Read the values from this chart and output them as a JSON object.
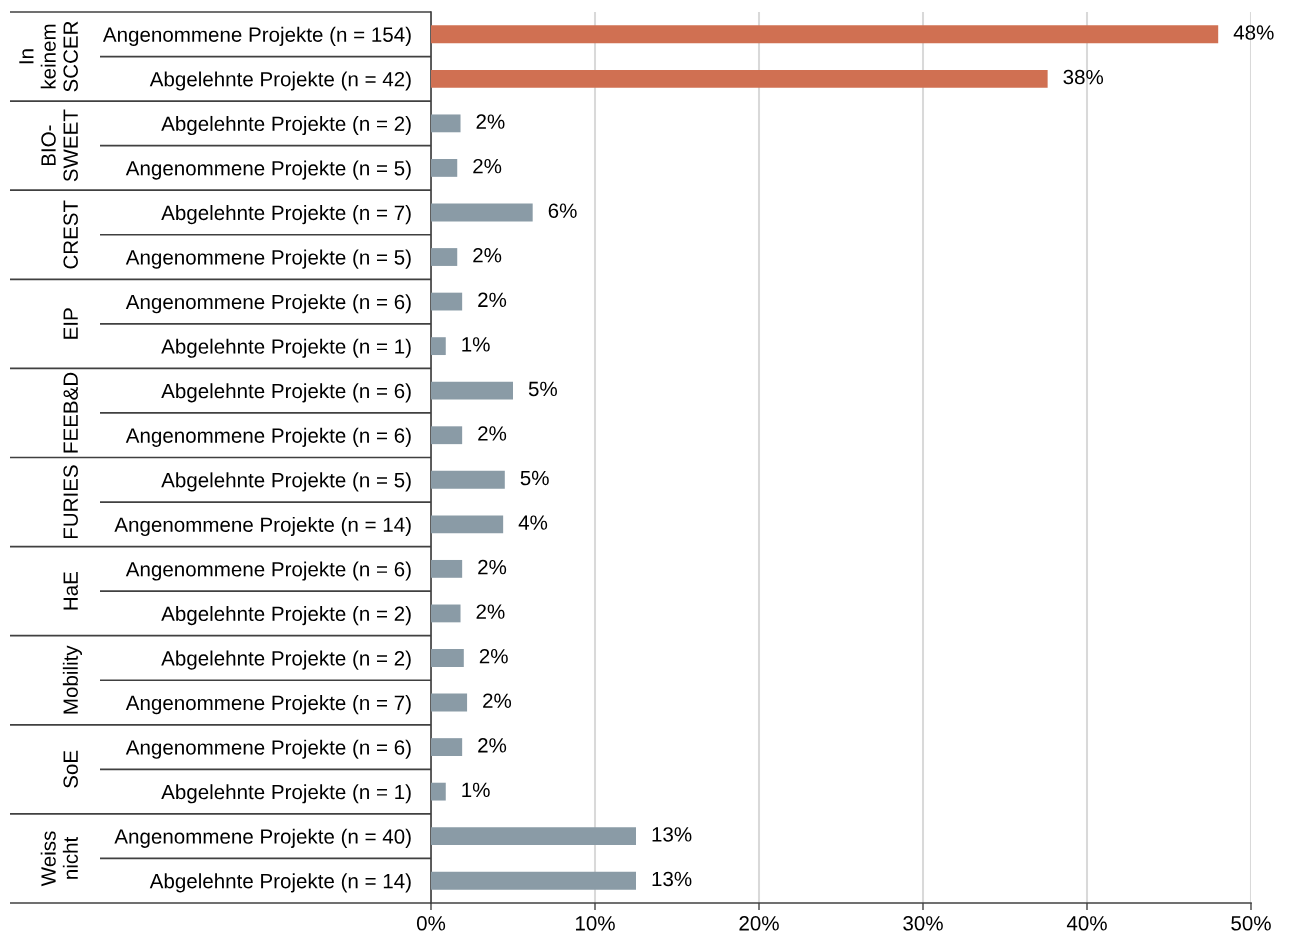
{
  "chart_data": {
    "type": "bar",
    "orientation": "horizontal",
    "categories": [
      "Angenommene Projekte (n = 154)",
      "Abgelehnte Projekte (n = 42)",
      "Abgelehnte Projekte (n = 2)",
      "Angenommene Projekte (n = 5)",
      "Abgelehnte Projekte (n = 7)",
      "Angenommene Projekte (n = 5)",
      "Angenommene Projekte (n = 6)",
      "Abgelehnte Projekte (n = 1)",
      "Abgelehnte Projekte (n = 6)",
      "Angenommene Projekte (n = 6)",
      "Abgelehnte Projekte (n = 5)",
      "Angenommene Projekte (n = 14)",
      "Angenommene Projekte (n = 6)",
      "Abgelehnte Projekte (n = 2)",
      "Abgelehnte Projekte (n = 2)",
      "Angenommene Projekte (n = 7)",
      "Angenommene Projekte (n = 6)",
      "Abgelehnte Projekte (n = 1)",
      "Angenommene Projekte (n = 40)",
      "Abgelehnte Projekte (n = 14)"
    ],
    "values": [
      48.0,
      37.6,
      1.8,
      1.6,
      6.2,
      1.6,
      1.9,
      0.9,
      5.0,
      1.9,
      4.5,
      4.4,
      1.9,
      1.8,
      2.0,
      2.2,
      1.9,
      0.9,
      12.5,
      12.5
    ],
    "value_labels": [
      "48%",
      "38%",
      "2%",
      "2%",
      "6%",
      "2%",
      "2%",
      "1%",
      "5%",
      "2%",
      "5%",
      "4%",
      "2%",
      "2%",
      "2%",
      "2%",
      "2%",
      "1%",
      "13%",
      "13%"
    ],
    "colors": [
      "#d07052",
      "#d07052",
      "#8a9ba6",
      "#8a9ba6",
      "#8a9ba6",
      "#8a9ba6",
      "#8a9ba6",
      "#8a9ba6",
      "#8a9ba6",
      "#8a9ba6",
      "#8a9ba6",
      "#8a9ba6",
      "#8a9ba6",
      "#8a9ba6",
      "#8a9ba6",
      "#8a9ba6",
      "#8a9ba6",
      "#8a9ba6",
      "#8a9ba6",
      "#8a9ba6"
    ],
    "xlim": [
      0,
      50
    ],
    "xticks": [
      {
        "value": 0,
        "label": "0%"
      },
      {
        "value": 10,
        "label": "10%"
      },
      {
        "value": 20,
        "label": "20%"
      },
      {
        "value": 30,
        "label": "30%"
      },
      {
        "value": 40,
        "label": "40%"
      },
      {
        "value": 50,
        "label": "50%"
      }
    ],
    "grid": "x",
    "annotations": [
      "In\nkeinem\nSCCER",
      "BIO-\nSWEET",
      "CREST",
      "EIP",
      "FEEB&D",
      "FURIES",
      "HaE",
      "Mobility",
      "SoE",
      "Weiss\nnicht"
    ]
  }
}
